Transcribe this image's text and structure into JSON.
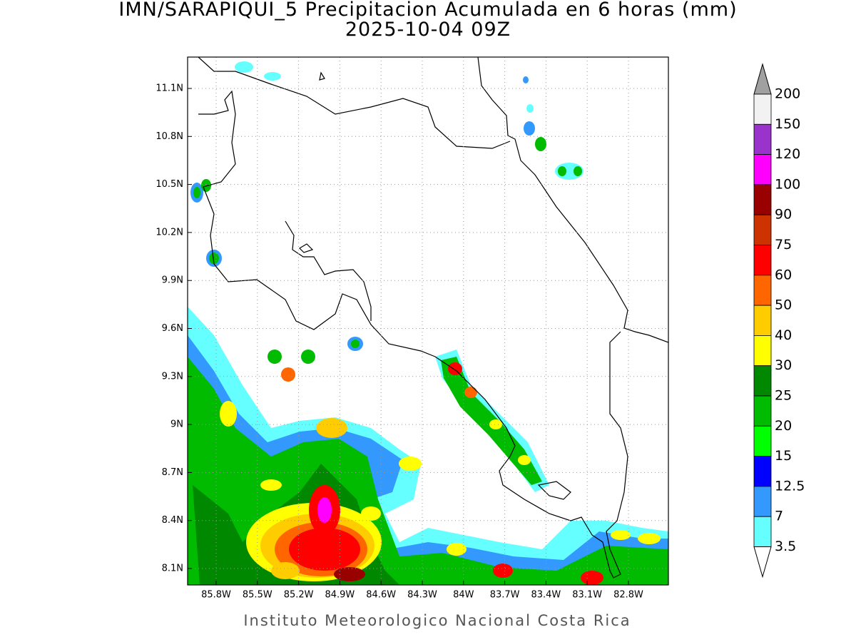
{
  "title": "IMN/SARAPIQUI_5 Precipitacion Acumulada en 6 horas (mm)",
  "subtitle": "2025-10-04 09Z",
  "map": {
    "lon_labels": [
      "85.8W",
      "85.5W",
      "85.2W",
      "84.9W",
      "84.6W",
      "84.3W",
      "84W",
      "83.7W",
      "83.4W",
      "83.1W",
      "82.8W"
    ],
    "lat_labels": [
      "11.1N",
      "10.8N",
      "10.5N",
      "10.2N",
      "9.9N",
      "9.6N",
      "9.3N",
      "9N",
      "8.7N",
      "8.4N",
      "8.1N"
    ]
  },
  "colorbar": {
    "labels": [
      "200",
      "150",
      "120",
      "100",
      "90",
      "75",
      "60",
      "50",
      "40",
      "30",
      "25",
      "20",
      "15",
      "12.5",
      "7",
      "3.5"
    ],
    "colors": [
      "#f2f2f2",
      "#9933cc",
      "#ff00ff",
      "#990000",
      "#cc3300",
      "#ff0000",
      "#ff6600",
      "#ffcc00",
      "#ffff00",
      "#008800",
      "#00bb00",
      "#00ff00",
      "#0000ff",
      "#3399ff",
      "#66ffff"
    ],
    "over_color": "#a0a0a0",
    "under_color": "#ffffff"
  },
  "footer": "Instituto Meteorologico Nacional Costa Rica"
}
